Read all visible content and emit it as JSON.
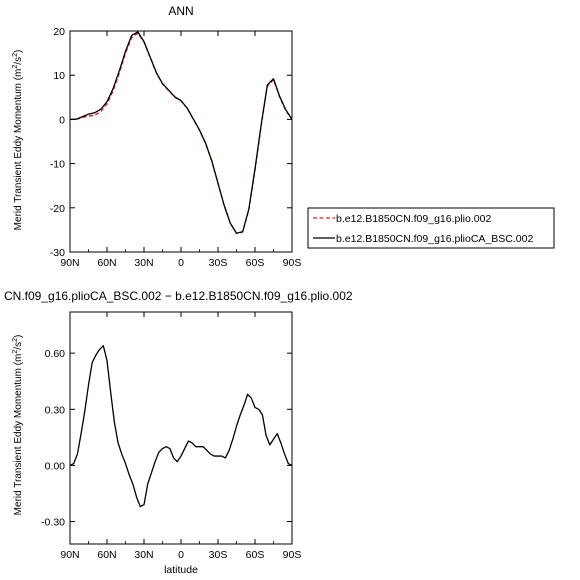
{
  "chart_data": [
    {
      "type": "line",
      "title": "ANN",
      "xlabel": "",
      "ylabel": "Merid Transient Eddy Momentum",
      "yunit_base": "(m",
      "yunit_mid": "/s",
      "yunit_end": ")",
      "yunit_sup": "2",
      "xticks": [
        "90N",
        "60N",
        "30N",
        "0",
        "30S",
        "60S",
        "90S"
      ],
      "yticks": [
        "-30",
        "-20",
        "-10",
        "0",
        "10",
        "20"
      ],
      "xlim": [
        90,
        -90
      ],
      "ylim": [
        -30,
        20
      ],
      "x": [
        90,
        85,
        80,
        75,
        70,
        65,
        60,
        55,
        50,
        45,
        40,
        35,
        30,
        25,
        20,
        15,
        10,
        5,
        0,
        -5,
        -10,
        -15,
        -20,
        -25,
        -30,
        -35,
        -40,
        -45,
        -50,
        -55,
        -60,
        -65,
        -70,
        -75,
        -80,
        -85,
        -90
      ],
      "series": [
        {
          "name": "b.e12.B1850CN.f09_g16.plio.002",
          "color": "#e41a1c",
          "dash": "dashed",
          "values": [
            0,
            0,
            0.4,
            0.8,
            0.9,
            1.8,
            3.5,
            6.5,
            10.5,
            15,
            18.5,
            19.5,
            17.5,
            14,
            10.5,
            8,
            6.5,
            5,
            4.2,
            2.5,
            0,
            -2.5,
            -5.5,
            -9.5,
            -14.5,
            -19.5,
            -23.5,
            -25.8,
            -25.5,
            -20.5,
            -11.5,
            -1.5,
            7.5,
            9.0,
            5.0,
            2.0,
            0
          ]
        },
        {
          "name": "b.e12.B1850CN.f09_g16.plioCA_BSC.002",
          "color": "#000000",
          "dash": "solid",
          "values": [
            0,
            0.05,
            0.6,
            1.2,
            1.5,
            2.3,
            4.0,
            7.0,
            11.0,
            15.4,
            19.0,
            19.8,
            17.6,
            14.1,
            10.6,
            8.1,
            6.6,
            5.1,
            4.25,
            2.55,
            0.1,
            -2.4,
            -5.4,
            -9.4,
            -14.45,
            -19.45,
            -23.5,
            -25.75,
            -25.4,
            -20.3,
            -11.2,
            -1.2,
            7.8,
            9.2,
            5.2,
            2.15,
            0
          ]
        }
      ]
    },
    {
      "type": "line",
      "title": "CN.f09_g16.plioCA_BSC.002 − b.e12.B1850CN.f09_g16.plio.002",
      "xlabel": "latitude",
      "ylabel": "Merid Transient Eddy Momentum",
      "yunit_base": "(m",
      "yunit_mid": "/s",
      "yunit_end": ")",
      "yunit_sup": "2",
      "xticks": [
        "90N",
        "60N",
        "30N",
        "0",
        "30S",
        "60S",
        "90S"
      ],
      "yticks": [
        "-0.30",
        "0.00",
        "0.30",
        "0.60"
      ],
      "xlim": [
        90,
        -90
      ],
      "ylim": [
        -0.42,
        0.82
      ],
      "x": [
        90,
        87,
        84,
        81,
        78,
        75,
        72,
        69,
        66,
        63,
        60,
        57,
        54,
        51,
        48,
        45,
        42,
        39,
        36,
        33,
        30,
        27,
        24,
        21,
        18,
        15,
        12,
        9,
        6,
        3,
        0,
        -3,
        -6,
        -9,
        -12,
        -15,
        -18,
        -21,
        -24,
        -27,
        -30,
        -33,
        -36,
        -39,
        -42,
        -45,
        -48,
        -51,
        -54,
        -57,
        -60,
        -63,
        -66,
        -69,
        -72,
        -75,
        -78,
        -81,
        -84,
        -87,
        -90
      ],
      "series": [
        {
          "name": "",
          "color": "#000000",
          "dash": "solid",
          "values": [
            0.0,
            0.01,
            0.06,
            0.17,
            0.29,
            0.43,
            0.55,
            0.59,
            0.62,
            0.64,
            0.56,
            0.39,
            0.23,
            0.12,
            0.06,
            0.01,
            -0.05,
            -0.1,
            -0.17,
            -0.22,
            -0.21,
            -0.1,
            -0.04,
            0.02,
            0.07,
            0.09,
            0.1,
            0.09,
            0.04,
            0.02,
            0.05,
            0.09,
            0.13,
            0.12,
            0.1,
            0.1,
            0.1,
            0.08,
            0.06,
            0.05,
            0.05,
            0.05,
            0.04,
            0.08,
            0.14,
            0.21,
            0.27,
            0.32,
            0.38,
            0.36,
            0.31,
            0.3,
            0.27,
            0.16,
            0.11,
            0.14,
            0.17,
            0.12,
            0.06,
            0.01,
            0.0
          ]
        }
      ]
    }
  ]
}
